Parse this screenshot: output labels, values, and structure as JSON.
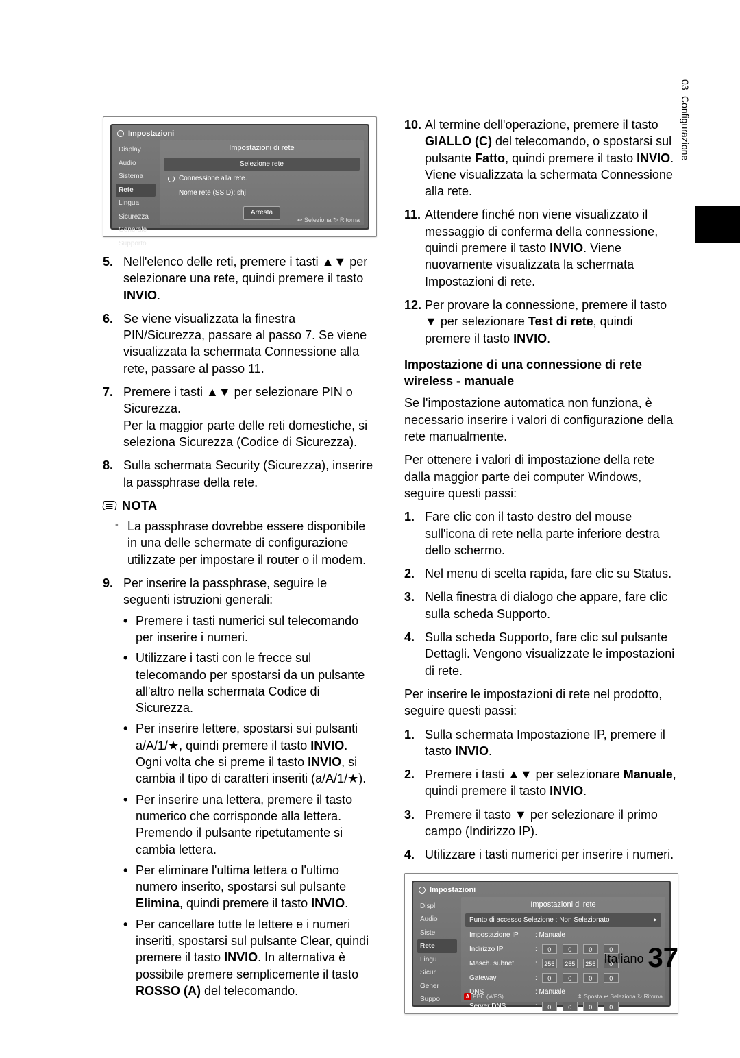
{
  "side_tab": {
    "num": "03",
    "label": "Configurazione"
  },
  "tv1": {
    "header": "Impostazioni",
    "sidebar": [
      "Display",
      "Audio",
      "Sistema",
      "Rete",
      "Lingua",
      "Sicurezza",
      "Generale",
      "Supporto"
    ],
    "title": "Impostazioni di rete",
    "sel": "Selezione rete",
    "conn": "Connessione alla rete.",
    "ssid": "Nome rete (SSID): shj",
    "btn": "Arresta",
    "footer": "↩ Seleziona ↻ Ritorna"
  },
  "left": {
    "i5": {
      "n": "5.",
      "a": "Nell'elenco delle reti, premere i tasti ▲▼ per selezionare una rete, quindi premere il tasto ",
      "b": "INVIO",
      "c": "."
    },
    "i6": {
      "n": "6.",
      "t": "Se viene visualizzata la finestra PIN/Sicurezza, passare al passo 7. Se viene visualizzata la schermata Connessione alla rete, passare al passo 11."
    },
    "i7": {
      "n": "7.",
      "t1": "Premere i tasti ▲▼ per selezionare PIN o Sicurezza.",
      "t2": "Per la maggior parte delle reti domestiche, si seleziona Sicurezza (Codice di Sicurezza)."
    },
    "i8": {
      "n": "8.",
      "t": "Sulla schermata Security (Sicurezza), inserire la passphrase della rete."
    },
    "note": {
      "label": "NOTA",
      "body": "La passphrase dovrebbe essere disponibile in una delle schermate di configurazione utilizzate per impostare il router o il modem."
    },
    "i9": {
      "n": "9.",
      "lead": "Per inserire la passphrase, seguire le seguenti istruzioni generali:",
      "b1": "Premere i tasti numerici sul telecomando per inserire i numeri.",
      "b2": "Utilizzare i tasti con le frecce sul telecomando per spostarsi da un pulsante all'altro nella schermata Codice di Sicurezza.",
      "b3a": "Per inserire lettere, spostarsi sui pulsanti a/A/1/★, quindi premere il tasto ",
      "b3b": "INVIO",
      "b3c": ". Ogni volta che si preme il tasto ",
      "b3d": "INVIO",
      "b3e": ", si cambia il tipo di caratteri inseriti (a/A/1/★).",
      "b4": "Per inserire una lettera, premere il tasto numerico che corrisponde alla lettera. Premendo il pulsante ripetutamente si cambia lettera.",
      "b5a": "Per eliminare l'ultima lettera o l'ultimo numero inserito, spostarsi sul pulsante ",
      "b5b": "Elimina",
      "b5c": ", quindi premere il tasto ",
      "b5d": "INVIO",
      "b5e": ".",
      "b6a": "Per cancellare tutte le lettere e i numeri inseriti, spostarsi sul pulsante Clear, quindi premere il tasto ",
      "b6b": "INVIO",
      "b6c": ". In alternativa è possibile premere semplicemente il tasto ",
      "b6d": "ROSSO (A)",
      "b6e": " del telecomando."
    }
  },
  "right": {
    "i10": {
      "n": "10.",
      "a": "Al termine dell'operazione, premere il tasto ",
      "b": "GIALLO (C)",
      "c": " del telecomando, o spostarsi sul pulsante ",
      "d": "Fatto",
      "e": ", quindi premere il tasto ",
      "f": "INVIO",
      "g": ". Viene visualizzata la schermata Connessione alla rete."
    },
    "i11": {
      "n": "11.",
      "a": "Attendere finché non viene visualizzato il messaggio di conferma della connessione, quindi premere il tasto ",
      "b": "INVIO",
      "c": ". Viene nuovamente visualizzata la schermata Impostazioni di rete."
    },
    "i12": {
      "n": "12.",
      "a": "Per provare la connessione, premere il tasto ▼ per selezionare ",
      "b": "Test di rete",
      "c": ", quindi premere il tasto ",
      "d": "INVIO",
      "e": "."
    },
    "head": "Impostazione di una connessione di rete wireless - manuale",
    "p1": "Se l'impostazione automatica non funziona, è necessario inserire i valori di configurazione della rete manualmente.",
    "p2": "Per ottenere i valori di impostazione della rete dalla maggior parte dei computer Windows, seguire questi passi:",
    "s1": {
      "n": "1.",
      "t": "Fare clic con il tasto destro del mouse sull'icona di rete nella parte inferiore destra dello schermo."
    },
    "s2": {
      "n": "2.",
      "t": "Nel menu di scelta rapida, fare clic su Status."
    },
    "s3": {
      "n": "3.",
      "t": "Nella finestra di dialogo che appare, fare clic sulla scheda Supporto."
    },
    "s4": {
      "n": "4.",
      "t": "Sulla scheda Supporto, fare clic sul pulsante Dettagli. Vengono visualizzate le impostazioni di rete."
    },
    "p3": "Per inserire le impostazioni di rete nel prodotto, seguire questi passi:",
    "t1": {
      "n": "1.",
      "a": "Sulla schermata Impostazione IP, premere il tasto ",
      "b": "INVIO",
      "c": "."
    },
    "t2": {
      "n": "2.",
      "a": "Premere i tasti ▲▼ per selezionare ",
      "b": "Manuale",
      "c": ", quindi premere il tasto ",
      "d": "INVIO",
      "e": "."
    },
    "t3": {
      "n": "3.",
      "t": "Premere il tasto ▼ per selezionare il primo campo (Indirizzo IP)."
    },
    "t4": {
      "n": "4.",
      "t": "Utilizzare i tasti numerici per inserire i numeri."
    }
  },
  "tv2": {
    "header": "Impostazioni",
    "sidebar": [
      "Display",
      "Audio",
      "Sistema",
      "Rete",
      "Lingua",
      "Sicurezza",
      "Generale",
      "Supporto"
    ],
    "title": "Impostazioni di rete",
    "ap": "Punto di accesso Selezione  : Non Selezionato",
    "rows": [
      {
        "l": "Impostazione IP",
        "v": ": Manuale"
      },
      {
        "l": "Indirizzo IP",
        "ip": [
          "0",
          "0",
          "0",
          "0"
        ]
      },
      {
        "l": "Masch. subnet",
        "ip": [
          "255",
          "255",
          "255",
          "0"
        ]
      },
      {
        "l": "Gateway",
        "ip": [
          "0",
          "0",
          "0",
          "0"
        ]
      },
      {
        "l": "DNS",
        "v": ": Manuale"
      },
      {
        "l": "Server DNS",
        "ip": [
          "0",
          "0",
          "0",
          "0"
        ]
      }
    ],
    "footer_left": "PBC (WPS)",
    "footer_right": "⇕ Sposta  ↩ Seleziona ↻ Ritorna"
  },
  "foot": {
    "lang": "Italiano",
    "page": "37"
  }
}
